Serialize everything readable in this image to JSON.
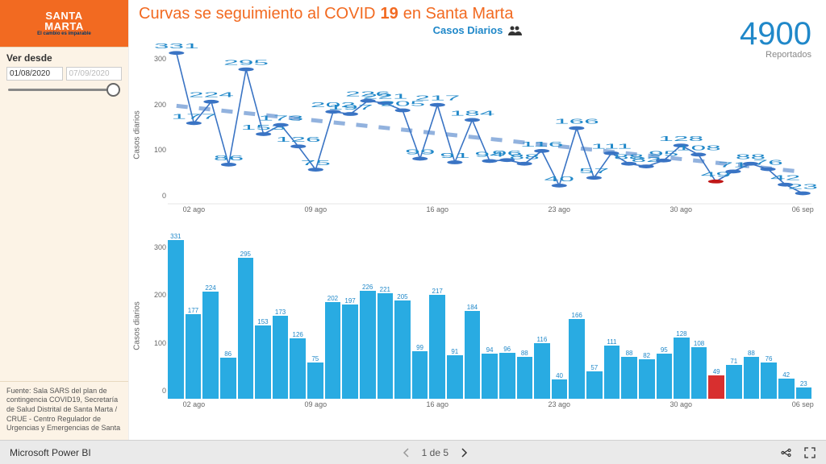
{
  "logo": {
    "line1": "SANTA",
    "line2": "MARTA",
    "line3": "El cambio es imparable",
    "bg": "#f26a21"
  },
  "sidebar": {
    "ver_desde": "Ver desde",
    "date_from": "01/08/2020",
    "date_to": "07/09/2020",
    "source": "Fuente: Sala SARS del plan de contingencia COVID19, Secretaría de Salud Distrital de Santa Marta / CRUE - Centro Regulador de Urgencias y Emergencias de Santa"
  },
  "title": {
    "p1": "Curvas se seguimiento al COVID",
    "p2": "19",
    "p3": " en Santa Marta"
  },
  "subtitle": "Casos Diarios",
  "kpi": {
    "value": "4900",
    "label": "Reportados",
    "color": "#2088c9"
  },
  "chart": {
    "y_label": "Casos diarios",
    "values": [
      331,
      177,
      224,
      86,
      295,
      153,
      173,
      126,
      75,
      202,
      197,
      226,
      221,
      205,
      99,
      217,
      91,
      184,
      94,
      96,
      88,
      116,
      40,
      166,
      57,
      111,
      88,
      82,
      95,
      128,
      108,
      49,
      71,
      88,
      76,
      42,
      23
    ],
    "highlight_index": 31,
    "bar_color": "#29abe2",
    "highlight_color": "#d82f2f",
    "line_color": "#3a74c4",
    "marker_color": "#3a74c4",
    "highlight_marker_color": "#c01818",
    "trend_color": "#3a74c4",
    "label_color": "#2088c9",
    "ylim": [
      0,
      350
    ],
    "yticks_line": [
      0,
      100,
      200,
      300
    ],
    "yticks_bar": [
      0,
      100,
      200,
      300
    ],
    "x_ticks": [
      {
        "i": 1,
        "label": "02 ago"
      },
      {
        "i": 8,
        "label": "09 ago"
      },
      {
        "i": 15,
        "label": "16 ago"
      },
      {
        "i": 22,
        "label": "23 ago"
      },
      {
        "i": 29,
        "label": "30 ago"
      },
      {
        "i": 36,
        "label": "06 sep"
      }
    ],
    "trend": {
      "y_start": 215,
      "y_end": 70
    },
    "label_fontsize": 8,
    "axis_tick_fontsize": 9
  },
  "footer": {
    "brand": "Microsoft Power BI",
    "page_current": 1,
    "page_total": 5,
    "page_text": "1 de 5"
  }
}
